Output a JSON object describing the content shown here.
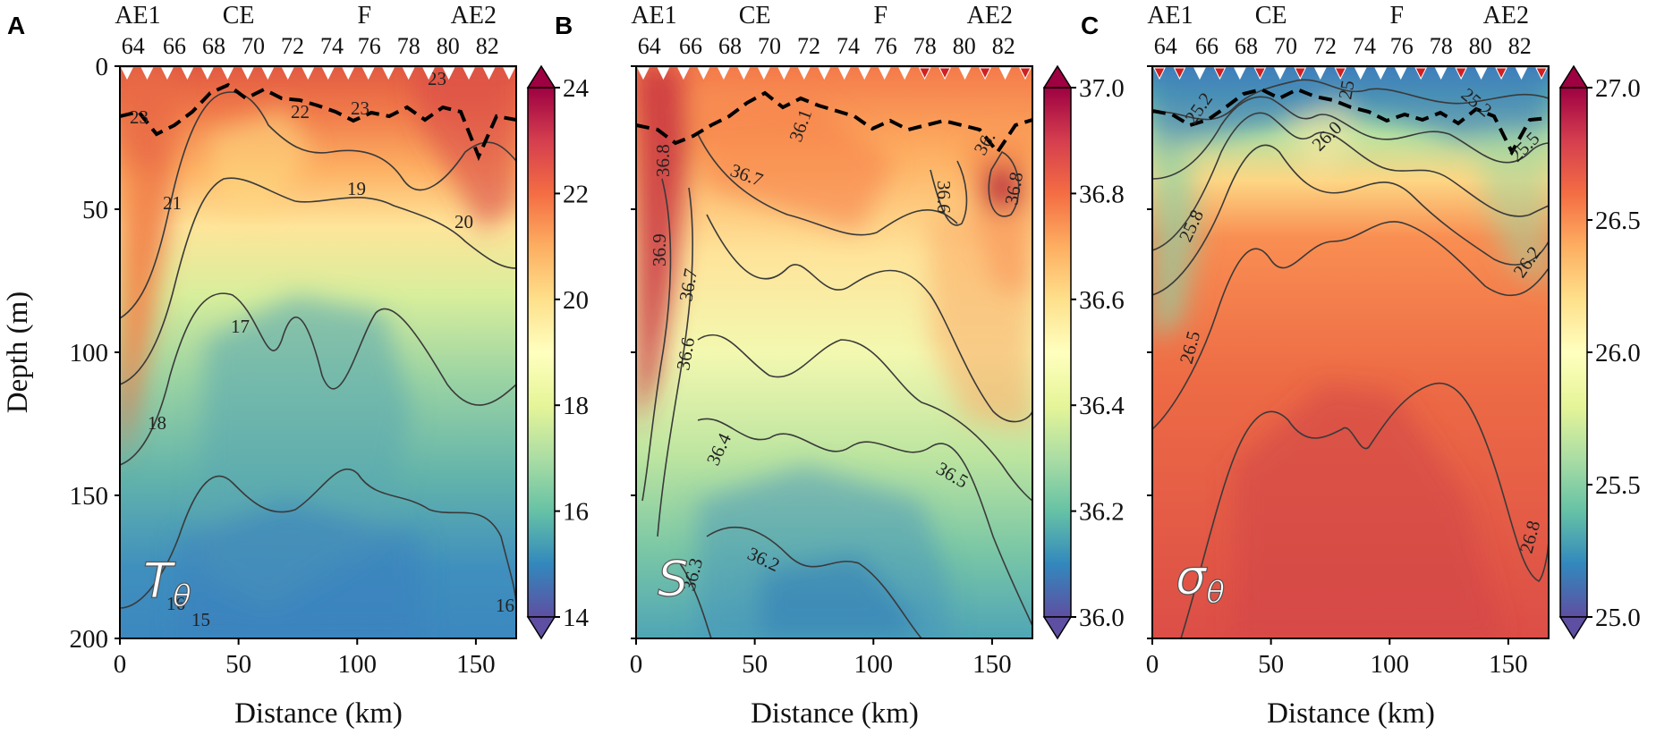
{
  "figure": {
    "xlabel": "Distance (km)",
    "ylabel": "Depth (m)",
    "station_names": [
      "AE1",
      "CE",
      "F",
      "AE2"
    ],
    "station_numbers": [
      "64",
      "66",
      "68",
      "70",
      "72",
      "74",
      "76",
      "78",
      "80",
      "82"
    ]
  },
  "colors": {
    "colormap": [
      "#5e4fa2",
      "#3288bd",
      "#66c2a5",
      "#abdda4",
      "#e6f598",
      "#ffffbf",
      "#fee08b",
      "#fdae61",
      "#f46d43",
      "#d53e4f",
      "#9e0142"
    ],
    "contour_line": "#3a3a3a",
    "mixed_layer": "#000000",
    "marker_white": "#ffffff",
    "marker_red": "#d02020"
  },
  "chart_data": [
    {
      "panel": "A",
      "type": "heatmap",
      "variable": "Tθ",
      "var_main": "T",
      "var_sub": "θ",
      "xlabel": "Distance (km)",
      "ylabel": "Depth (m)",
      "xlim": [
        0,
        167
      ],
      "ylim": [
        200,
        0
      ],
      "xticks": [
        "0",
        "50",
        "100",
        "150"
      ],
      "yticks": [
        "0",
        "50",
        "100",
        "150",
        "200"
      ],
      "colorbar": {
        "min": 14,
        "max": 24,
        "ticks": [
          "14",
          "16",
          "18",
          "20",
          "22",
          "24"
        ]
      },
      "contour_labels": [
        "23",
        "22",
        "23",
        "23",
        "21",
        "19",
        "20",
        "17",
        "18",
        "16",
        "15",
        "16"
      ],
      "marker_colors": [
        "w",
        "w",
        "w",
        "w",
        "w",
        "w",
        "w",
        "w",
        "w",
        "w",
        "w",
        "w",
        "w",
        "w",
        "w",
        "w",
        "w",
        "w",
        "w",
        "w"
      ]
    },
    {
      "panel": "B",
      "type": "heatmap",
      "variable": "S",
      "var_main": "S",
      "var_sub": "",
      "xlabel": "Distance (km)",
      "ylabel": "",
      "xlim": [
        0,
        167
      ],
      "ylim": [
        200,
        0
      ],
      "xticks": [
        "0",
        "50",
        "100",
        "150"
      ],
      "yticks": [],
      "colorbar": {
        "min": 36.0,
        "max": 37.0,
        "ticks": [
          "36.0",
          "36.2",
          "36.4",
          "36.6",
          "36.8",
          "37.0"
        ]
      },
      "contour_labels": [
        "36.8",
        "36.9",
        "36.7",
        "36.7",
        "36.6",
        "36.1",
        "36.6",
        "36.",
        "36.8",
        "36.4",
        "36.5",
        "36.3",
        "36.2"
      ],
      "marker_colors": [
        "w",
        "w",
        "w",
        "w",
        "w",
        "w",
        "w",
        "w",
        "w",
        "w",
        "w",
        "w",
        "w",
        "w",
        "r",
        "r",
        "w",
        "r",
        "w",
        "r"
      ]
    },
    {
      "panel": "C",
      "type": "heatmap",
      "variable": "σθ",
      "var_main": "σ",
      "var_sub": "θ",
      "xlabel": "Distance (km)",
      "ylabel": "",
      "xlim": [
        0,
        167
      ],
      "ylim": [
        200,
        0
      ],
      "xticks": [
        "0",
        "50",
        "100",
        "150"
      ],
      "yticks": [],
      "colorbar": {
        "min": 25.0,
        "max": 27.0,
        "ticks": [
          "25.0",
          "25.5",
          "26.0",
          "26.5",
          "27.0"
        ]
      },
      "contour_labels": [
        "25.2",
        "25",
        "25.2",
        "26.0",
        "25.5",
        "25.8",
        "26.2",
        "26.5",
        "26.8"
      ],
      "marker_colors": [
        "r",
        "r",
        "w",
        "r",
        "w",
        "r",
        "w",
        "r",
        "w",
        "r",
        "w",
        "w",
        "w",
        "r",
        "w",
        "r",
        "w",
        "r",
        "w",
        "r"
      ]
    }
  ]
}
